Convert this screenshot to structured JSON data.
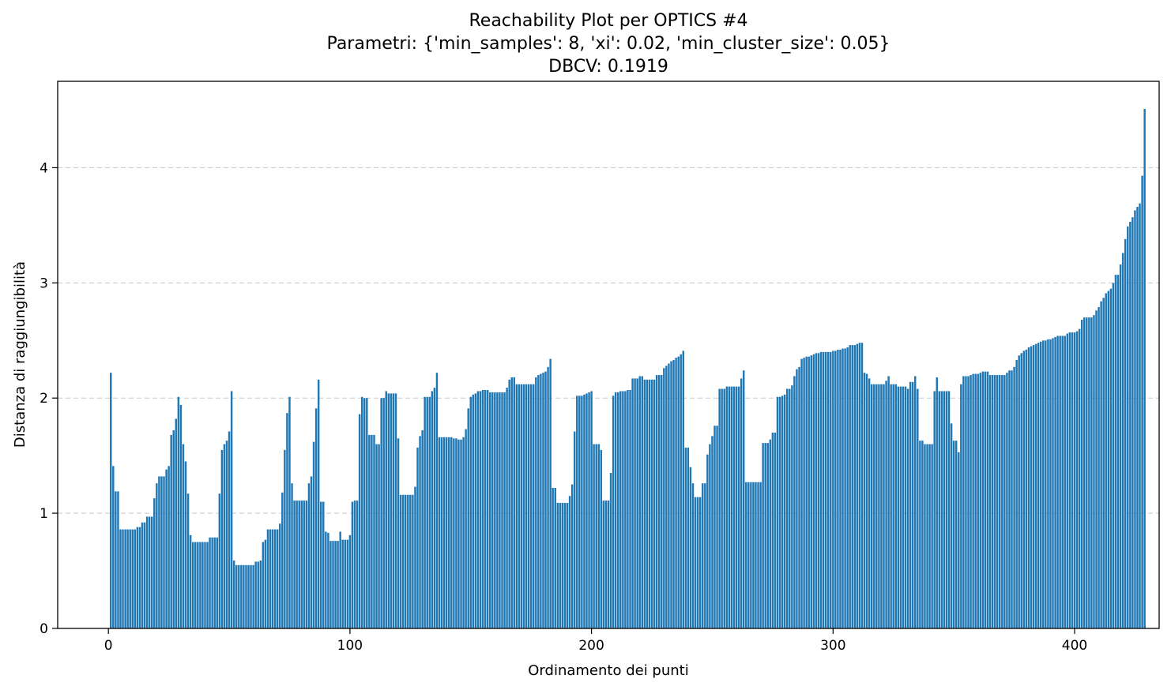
{
  "chart_data": {
    "type": "bar",
    "title_lines": [
      "Reachability Plot per OPTICS #4",
      "Parametri: {'min_samples': 8, 'xi': 0.02, 'min_cluster_size': 0.05}",
      "DBCV: 0.1919"
    ],
    "xlabel": "Ordinamento dei punti",
    "ylabel": "Distanza di raggiungibilità",
    "xlim": [
      -21,
      435
    ],
    "ylim": [
      0,
      4.75
    ],
    "x_ticks": [
      0,
      100,
      200,
      300,
      400
    ],
    "y_ticks": [
      0,
      1,
      2,
      3,
      4
    ],
    "grid": "y dashed",
    "color": "#1f77b4",
    "x_start": 1,
    "values": [
      2.22,
      1.41,
      1.19,
      1.19,
      0.86,
      0.86,
      0.86,
      0.86,
      0.86,
      0.86,
      0.86,
      0.88,
      0.88,
      0.92,
      0.92,
      0.97,
      0.97,
      0.97,
      1.13,
      1.26,
      1.32,
      1.32,
      1.32,
      1.38,
      1.41,
      1.68,
      1.72,
      1.82,
      2.01,
      1.94,
      1.6,
      1.45,
      1.17,
      0.81,
      0.75,
      0.75,
      0.75,
      0.75,
      0.75,
      0.75,
      0.75,
      0.79,
      0.79,
      0.79,
      0.79,
      1.17,
      1.55,
      1.6,
      1.63,
      1.71,
      2.06,
      0.59,
      0.55,
      0.55,
      0.55,
      0.55,
      0.55,
      0.55,
      0.55,
      0.55,
      0.58,
      0.58,
      0.59,
      0.75,
      0.77,
      0.86,
      0.86,
      0.86,
      0.86,
      0.86,
      0.91,
      1.18,
      1.55,
      1.87,
      2.01,
      1.26,
      1.11,
      1.11,
      1.11,
      1.11,
      1.11,
      1.11,
      1.26,
      1.32,
      1.62,
      1.91,
      2.16,
      1.1,
      1.1,
      0.84,
      0.83,
      0.76,
      0.76,
      0.76,
      0.76,
      0.84,
      0.77,
      0.77,
      0.77,
      0.81,
      1.1,
      1.11,
      1.11,
      1.86,
      2.01,
      2.0,
      2.0,
      1.68,
      1.68,
      1.68,
      1.6,
      1.6,
      2.0,
      2.0,
      2.06,
      2.04,
      2.04,
      2.04,
      2.04,
      1.65,
      1.16,
      1.16,
      1.16,
      1.16,
      1.16,
      1.16,
      1.23,
      1.57,
      1.67,
      1.72,
      2.01,
      2.01,
      2.01,
      2.06,
      2.09,
      2.22,
      1.66,
      1.66,
      1.66,
      1.66,
      1.66,
      1.66,
      1.65,
      1.65,
      1.64,
      1.64,
      1.66,
      1.73,
      1.91,
      2.01,
      2.03,
      2.04,
      2.06,
      2.06,
      2.07,
      2.07,
      2.07,
      2.05,
      2.05,
      2.05,
      2.05,
      2.05,
      2.05,
      2.05,
      2.09,
      2.16,
      2.18,
      2.18,
      2.12,
      2.12,
      2.12,
      2.12,
      2.12,
      2.12,
      2.12,
      2.12,
      2.18,
      2.2,
      2.21,
      2.22,
      2.23,
      2.27,
      2.34,
      1.22,
      1.22,
      1.09,
      1.09,
      1.09,
      1.09,
      1.09,
      1.15,
      1.25,
      1.71,
      2.02,
      2.02,
      2.02,
      2.03,
      2.04,
      2.05,
      2.06,
      1.6,
      1.6,
      1.6,
      1.55,
      1.11,
      1.11,
      1.11,
      1.35,
      2.02,
      2.05,
      2.05,
      2.06,
      2.06,
      2.06,
      2.07,
      2.07,
      2.17,
      2.17,
      2.17,
      2.19,
      2.19,
      2.16,
      2.16,
      2.16,
      2.16,
      2.16,
      2.2,
      2.2,
      2.2,
      2.26,
      2.28,
      2.3,
      2.32,
      2.33,
      2.35,
      2.36,
      2.38,
      2.41,
      1.57,
      1.57,
      1.4,
      1.26,
      1.14,
      1.14,
      1.14,
      1.26,
      1.26,
      1.51,
      1.6,
      1.67,
      1.76,
      1.76,
      2.08,
      2.08,
      2.08,
      2.1,
      2.1,
      2.1,
      2.1,
      2.1,
      2.1,
      2.17,
      2.24,
      1.27,
      1.27,
      1.27,
      1.27,
      1.27,
      1.27,
      1.27,
      1.61,
      1.61,
      1.61,
      1.64,
      1.7,
      1.7,
      2.01,
      2.01,
      2.02,
      2.03,
      2.08,
      2.08,
      2.11,
      2.19,
      2.25,
      2.27,
      2.34,
      2.35,
      2.36,
      2.36,
      2.37,
      2.38,
      2.39,
      2.39,
      2.4,
      2.4,
      2.4,
      2.4,
      2.4,
      2.41,
      2.41,
      2.42,
      2.42,
      2.43,
      2.43,
      2.44,
      2.46,
      2.46,
      2.46,
      2.47,
      2.48,
      2.48,
      2.22,
      2.21,
      2.17,
      2.12,
      2.12,
      2.12,
      2.12,
      2.12,
      2.12,
      2.15,
      2.19,
      2.12,
      2.12,
      2.12,
      2.1,
      2.1,
      2.1,
      2.1,
      2.08,
      2.14,
      2.14,
      2.19,
      2.08,
      1.63,
      1.63,
      1.6,
      1.6,
      1.6,
      1.6,
      2.06,
      2.18,
      2.06,
      2.06,
      2.06,
      2.06,
      2.06,
      1.78,
      1.63,
      1.63,
      1.53,
      2.12,
      2.19,
      2.19,
      2.19,
      2.2,
      2.21,
      2.21,
      2.21,
      2.22,
      2.23,
      2.23,
      2.23,
      2.2,
      2.2,
      2.2,
      2.2,
      2.2,
      2.2,
      2.2,
      2.22,
      2.24,
      2.24,
      2.27,
      2.33,
      2.37,
      2.39,
      2.41,
      2.42,
      2.44,
      2.45,
      2.46,
      2.47,
      2.48,
      2.49,
      2.5,
      2.5,
      2.51,
      2.51,
      2.52,
      2.53,
      2.54,
      2.54,
      2.54,
      2.54,
      2.56,
      2.57,
      2.57,
      2.57,
      2.58,
      2.6,
      2.68,
      2.7,
      2.7,
      2.7,
      2.7,
      2.72,
      2.76,
      2.79,
      2.84,
      2.87,
      2.91,
      2.93,
      2.95,
      3.0,
      3.07,
      3.07,
      3.16,
      3.26,
      3.38,
      3.49,
      3.53,
      3.57,
      3.63,
      3.66,
      3.69,
      3.93,
      4.51
    ]
  }
}
